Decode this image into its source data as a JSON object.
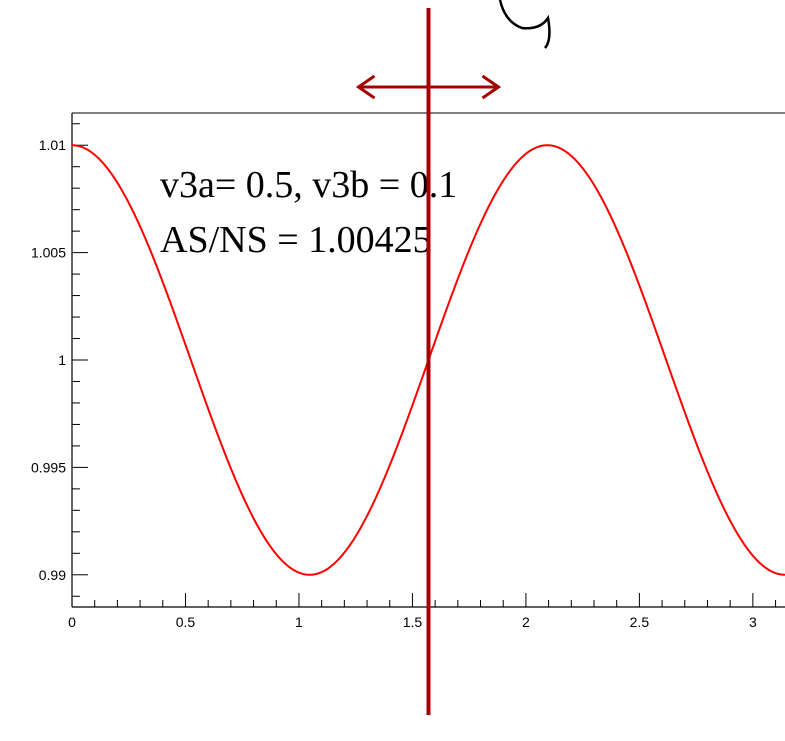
{
  "chart_data": {
    "type": "line",
    "xlim": [
      0,
      3.14159
    ],
    "ylim": [
      0.9885,
      1.0115
    ],
    "x_ticks": [
      {
        "value": 0,
        "label": "0"
      },
      {
        "value": 0.5,
        "label": "0.5"
      },
      {
        "value": 1,
        "label": "1"
      },
      {
        "value": 1.5,
        "label": "1.5"
      },
      {
        "value": 2,
        "label": "2"
      },
      {
        "value": 2.5,
        "label": "2.5"
      },
      {
        "value": 3,
        "label": "3"
      }
    ],
    "y_ticks": [
      {
        "value": 0.99,
        "label": "0.99"
      },
      {
        "value": 0.995,
        "label": "0.995"
      },
      {
        "value": 1,
        "label": "1"
      },
      {
        "value": 1.005,
        "label": "1.005"
      },
      {
        "value": 1.01,
        "label": "1.01"
      }
    ],
    "series": [
      {
        "function": "1 + 0.01*cos(3x)",
        "x_range": [
          0,
          3.14159
        ],
        "color": "#ff0000"
      }
    ],
    "annotations": [
      {
        "text": "v3a= 0.5, v3b = 0.1"
      },
      {
        "text": "AS/NS = 1.00425"
      }
    ],
    "marker_line": {
      "x": 1.5708,
      "color": "#a30000"
    },
    "double_arrow": {
      "x_center": 1.5708,
      "color": "#a30000"
    },
    "grid": false,
    "legend": "none"
  },
  "colors": {
    "curve": "#ff0000",
    "marker": "#a30000",
    "axis": "#000000"
  }
}
